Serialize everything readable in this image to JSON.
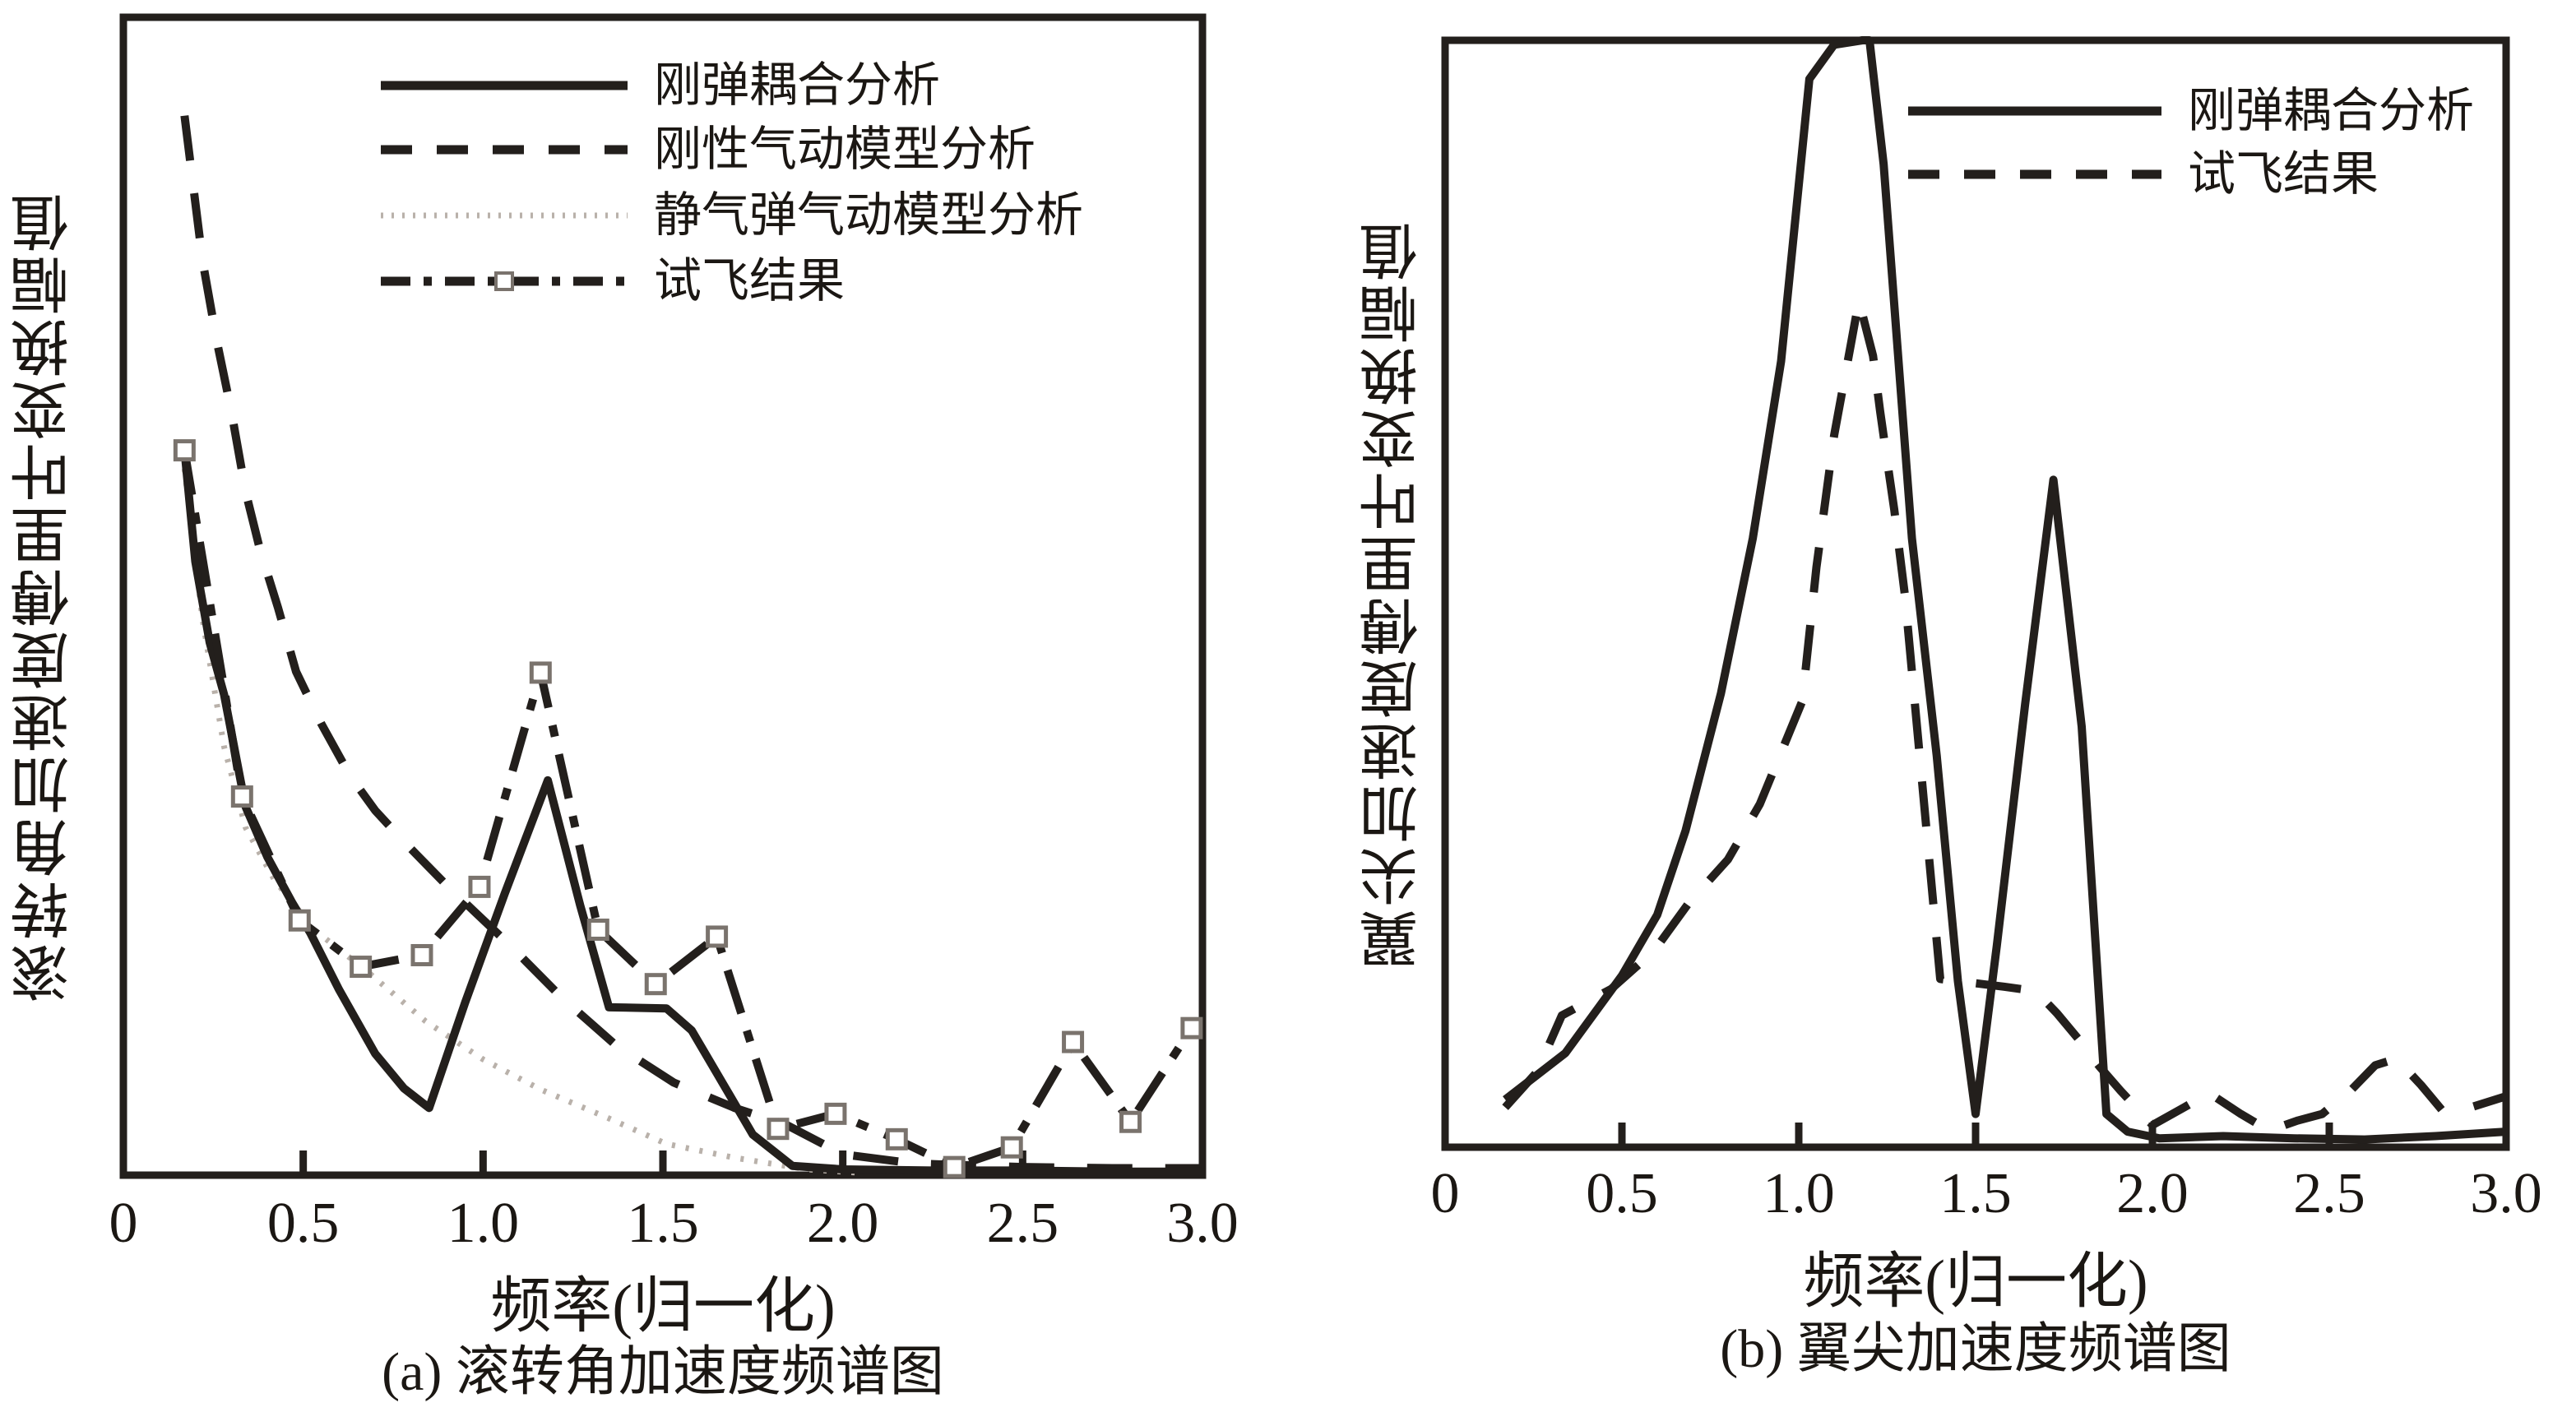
{
  "colors": {
    "line": "#231f1c",
    "dotted_line": "#b9b1aa",
    "marker_fill": "#ffffff",
    "marker_stroke": "#7a736d",
    "text": "#1b1713",
    "background": "#ffffff"
  },
  "chart_data": [
    {
      "type": "line",
      "panel": "a",
      "title": "(a) 滚转角加速度频谱图",
      "xlabel": "频率(归一化)",
      "ylabel": "滚转角加速度傅里叶变换幅值",
      "xlim": [
        0,
        3.0
      ],
      "ylim": [
        0,
        100
      ],
      "x_tick_labels": [
        "0",
        "0.5",
        "1.0",
        "1.5",
        "2.0",
        "2.5",
        "3.0"
      ],
      "y_ticks": "none (amplitude, arbitrary units)",
      "grid": false,
      "legend_position": "upper-left-inside",
      "series": [
        {
          "name": "刚弹耦合分析",
          "style": "solid",
          "x": [
            0.17,
            0.2,
            0.24,
            0.28,
            0.34,
            0.4,
            0.47,
            0.52,
            0.6,
            0.7,
            0.78,
            0.85,
            0.95,
            1.06,
            1.18,
            1.27,
            1.35,
            1.51,
            1.58,
            1.65,
            1.75,
            1.86,
            2.0,
            2.25,
            2.5,
            2.75,
            3.0
          ],
          "y": [
            62.6,
            53.0,
            46.0,
            41.5,
            31.8,
            27.5,
            23.5,
            20.9,
            16.0,
            10.5,
            7.5,
            5.8,
            14.9,
            24.3,
            34.1,
            23.3,
            14.5,
            14.4,
            12.5,
            8.8,
            3.5,
            0.8,
            0.5,
            0.4,
            0.4,
            0.3,
            0.3
          ]
        },
        {
          "name": "刚性气动模型分析",
          "style": "dashed",
          "x": [
            0.17,
            0.22,
            0.26,
            0.3,
            0.34,
            0.38,
            0.43,
            0.48,
            0.55,
            0.63,
            0.7,
            0.78,
            0.9,
            1.07,
            1.22,
            1.37,
            1.53,
            1.7,
            1.84,
            2.0,
            2.2,
            2.5,
            2.75,
            3.0
          ],
          "y": [
            91.5,
            79.0,
            72.0,
            66.0,
            59.0,
            54.0,
            49.0,
            43.5,
            39.0,
            34.5,
            31.5,
            28.8,
            25.0,
            20.0,
            15.3,
            11.2,
            8.0,
            5.8,
            4.4,
            1.8,
            1.0,
            0.7,
            0.6,
            0.6
          ]
        },
        {
          "name": "静气弹气动模型分析",
          "style": "dotted",
          "x": [
            0.17,
            0.22,
            0.28,
            0.34,
            0.42,
            0.53,
            0.67,
            0.84,
            1.0,
            1.16,
            1.35,
            1.51,
            1.7,
            1.9,
            2.05
          ],
          "y": [
            61.0,
            48.0,
            37.0,
            30.0,
            25.5,
            21.2,
            17.8,
            13.3,
            10.0,
            7.4,
            4.9,
            2.7,
            1.5,
            0.5,
            0.2
          ]
        },
        {
          "name": "试飞结果",
          "style": "dashdot",
          "marker": "open-square",
          "x": [
            0.17,
            0.33,
            0.49,
            0.66,
            0.83,
            0.99,
            1.16,
            1.32,
            1.48,
            1.65,
            1.82,
            1.98,
            2.15,
            2.31,
            2.47,
            2.64,
            2.8,
            2.97
          ],
          "y": [
            62.6,
            32.7,
            22.0,
            18.0,
            19.0,
            24.9,
            43.4,
            21.2,
            16.5,
            20.6,
            4.0,
            5.3,
            3.1,
            0.7,
            2.4,
            11.5,
            4.6,
            12.7
          ]
        }
      ]
    },
    {
      "type": "line",
      "panel": "b",
      "title": "(b) 翼尖加速度频谱图",
      "xlabel": "频率(归一化)",
      "ylabel": "翼尖加速度傅里叶变换幅值",
      "xlim": [
        0,
        3.0
      ],
      "ylim": [
        0,
        100
      ],
      "x_tick_labels": [
        "0",
        "0.5",
        "1.0",
        "1.5",
        "2.0",
        "2.5",
        "3.0"
      ],
      "y_ticks": "none (amplitude, arbitrary units)",
      "grid": false,
      "legend_position": "upper-right-inside",
      "series": [
        {
          "name": "刚弹耦合分析",
          "style": "solid",
          "x": [
            0.17,
            0.34,
            0.5,
            0.6,
            0.68,
            0.78,
            0.87,
            0.95,
            1.03,
            1.1,
            1.18,
            1.2,
            1.24,
            1.32,
            1.39,
            1.45,
            1.5,
            1.56,
            1.64,
            1.72,
            1.8,
            1.87,
            1.93,
            2.02,
            2.2,
            2.4,
            2.6,
            2.8,
            3.0
          ],
          "y": [
            4.3,
            8.5,
            15.5,
            21.0,
            28.6,
            41.0,
            55.0,
            71.0,
            96.5,
            99.6,
            100,
            100,
            88.8,
            55.0,
            35.4,
            15.0,
            3.0,
            18.2,
            40.0,
            60.3,
            38.0,
            3.0,
            1.4,
            0.8,
            1.0,
            0.8,
            0.7,
            1.0,
            1.4
          ]
        },
        {
          "name": "试飞结果",
          "style": "dashed",
          "x": [
            0.17,
            0.26,
            0.33,
            0.47,
            0.59,
            0.69,
            0.8,
            0.89,
            1.01,
            1.05,
            1.1,
            1.15,
            1.17,
            1.21,
            1.23,
            1.25,
            1.27,
            1.3,
            1.4,
            1.58,
            1.67,
            1.73,
            1.79,
            1.85,
            1.91,
            2.0,
            2.09,
            2.16,
            2.25,
            2.33,
            2.41,
            2.48,
            2.56,
            2.63,
            2.69,
            2.76,
            2.82,
            2.9,
            3.0
          ],
          "y": [
            3.6,
            6.8,
            11.9,
            14.3,
            17.7,
            22.1,
            26.0,
            31.0,
            40.3,
            52.4,
            64.3,
            73.0,
            76.5,
            71.5,
            66.5,
            62.0,
            57.6,
            49.9,
            15.2,
            14.5,
            14.1,
            12.1,
            9.8,
            7.3,
            5.1,
            2.0,
            3.6,
            4.9,
            3.0,
            1.5,
            2.4,
            3.0,
            5.1,
            7.4,
            8.0,
            5.6,
            3.3,
            3.6,
            4.6
          ]
        }
      ]
    }
  ]
}
